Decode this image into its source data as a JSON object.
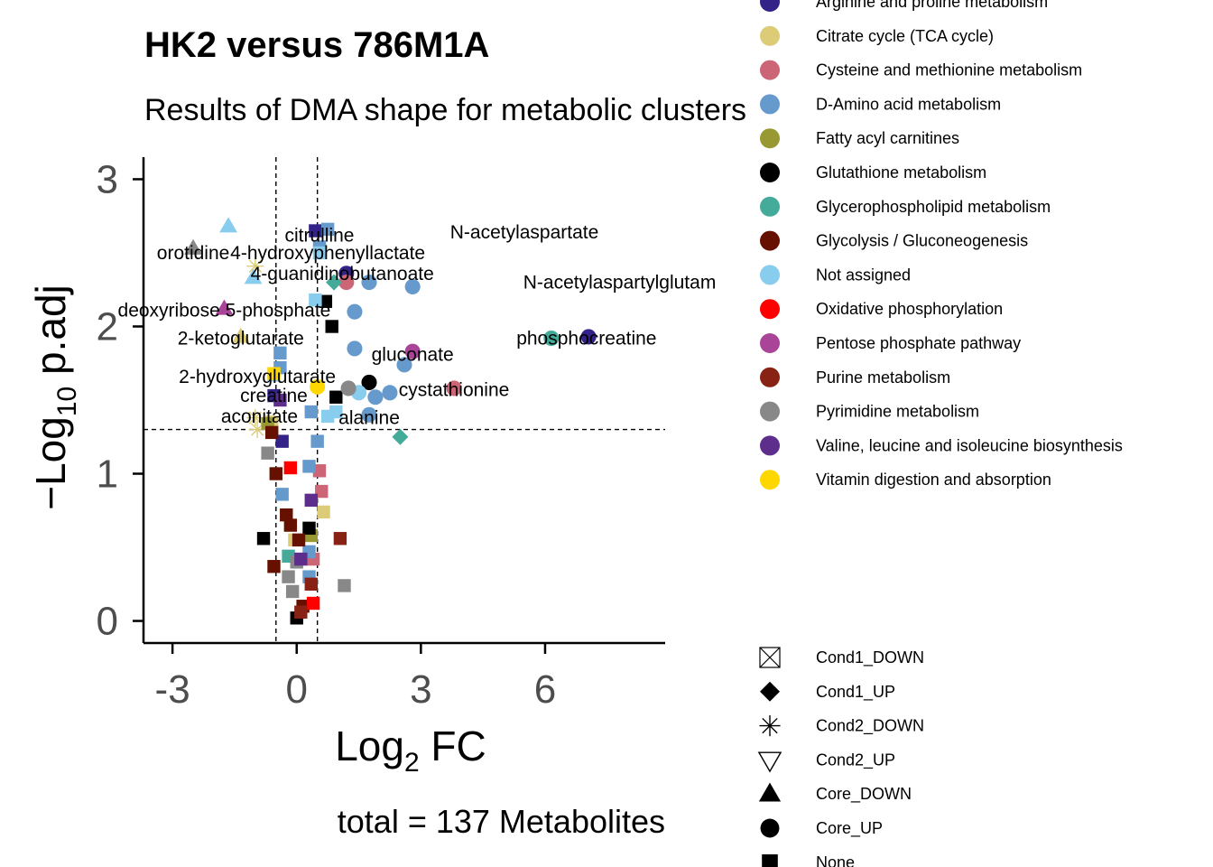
{
  "chart_data": {
    "type": "scatter",
    "title": "HK2 versus 786M1A",
    "subtitle": "Results of DMA shape for metabolic clusters",
    "xlabel": "Log2 FC",
    "ylabel": "-Log10 p.adj",
    "caption": "total = 137 Metabolites",
    "xlim": [
      -3.7,
      8.9
    ],
    "ylim": [
      -0.15,
      3.15
    ],
    "xticks": [
      "-3",
      "0",
      "3",
      "6"
    ],
    "yticks": [
      "0",
      "1",
      "2",
      "3"
    ],
    "thresholds": {
      "x": [
        -0.5,
        0.5
      ],
      "y": 1.3
    },
    "grid": false,
    "legend_position": "right",
    "pathway_legend": [
      {
        "name": "Arginine and proline metabolism",
        "color": "#332288"
      },
      {
        "name": "Citrate cycle (TCA cycle)",
        "color": "#DDCC77"
      },
      {
        "name": "Cysteine and methionine metabolism",
        "color": "#CC6677"
      },
      {
        "name": "D-Amino acid metabolism",
        "color": "#6699CC"
      },
      {
        "name": "Fatty acyl carnitines",
        "color": "#999933"
      },
      {
        "name": "Glutathione metabolism",
        "color": "#000000"
      },
      {
        "name": "Glycerophospholipid metabolism",
        "color": "#44AA99"
      },
      {
        "name": "Glycolysis / Gluconeogenesis",
        "color": "#661100"
      },
      {
        "name": "Not assigned",
        "color": "#88CCEE"
      },
      {
        "name": "Oxidative phosphorylation",
        "color": "#FF0000"
      },
      {
        "name": "Pentose phosphate pathway",
        "color": "#AA4499"
      },
      {
        "name": "Purine metabolism",
        "color": "#882215"
      },
      {
        "name": "Pyrimidine metabolism",
        "color": "#888888"
      },
      {
        "name": "Valine, leucine and isoleucine biosynthesis",
        "color": "#5D2E8C"
      },
      {
        "name": "Vitamin digestion and absorption",
        "color": "#FFD700"
      }
    ],
    "shape_legend": [
      {
        "name": "Cond1_DOWN",
        "shape": "box-cross"
      },
      {
        "name": "Cond1_UP",
        "shape": "diamond"
      },
      {
        "name": "Cond2_DOWN",
        "shape": "asterisk"
      },
      {
        "name": "Cond2_UP",
        "shape": "triangle-down-open"
      },
      {
        "name": "Core_DOWN",
        "shape": "triangle"
      },
      {
        "name": "Core_UP",
        "shape": "circle"
      },
      {
        "name": "None",
        "shape": "square"
      }
    ],
    "labels": [
      {
        "text": "citrulline",
        "x": 0.55,
        "y": 2.62
      },
      {
        "text": "N-acetylaspartate",
        "x": 5.5,
        "y": 2.64
      },
      {
        "text": "orotidine",
        "x": -2.5,
        "y": 2.5
      },
      {
        "text": "4-hydroxyphenyllactate",
        "x": 0.75,
        "y": 2.5
      },
      {
        "text": "4-guanidinobutanoate",
        "x": 1.1,
        "y": 2.36
      },
      {
        "text": "N-acetylaspartylglutam",
        "x": 7.8,
        "y": 2.3
      },
      {
        "text": "deoxyribose 5-phosphate",
        "x": -1.75,
        "y": 2.11
      },
      {
        "text": "phosphocreatine",
        "x": 7.0,
        "y": 1.92
      },
      {
        "text": "2-ketoglutarate",
        "x": -1.35,
        "y": 1.92
      },
      {
        "text": "gluconate",
        "x": 2.8,
        "y": 1.81
      },
      {
        "text": "2-hydroxyglutarate",
        "x": -0.95,
        "y": 1.66
      },
      {
        "text": "cystathionine",
        "x": 3.8,
        "y": 1.57
      },
      {
        "text": "creatine",
        "x": -0.55,
        "y": 1.53
      },
      {
        "text": "aconitate",
        "x": -0.9,
        "y": 1.39
      },
      {
        "text": "alanine",
        "x": 1.75,
        "y": 1.38
      }
    ],
    "series": [
      {
        "name": "Arginine and proline metabolism",
        "points": [
          {
            "x": 0.45,
            "y": 2.65,
            "shape": "square"
          },
          {
            "x": 1.2,
            "y": 2.36,
            "shape": "circle"
          },
          {
            "x": 7.05,
            "y": 1.93,
            "shape": "circle"
          },
          {
            "x": -0.55,
            "y": 1.53,
            "shape": "square"
          },
          {
            "x": -0.35,
            "y": 1.22,
            "shape": "square"
          }
        ]
      },
      {
        "name": "Citrate cycle (TCA cycle)",
        "points": [
          {
            "x": -1.35,
            "y": 1.93,
            "shape": "triangle"
          },
          {
            "x": -1.0,
            "y": 1.38,
            "shape": "asterisk"
          },
          {
            "x": -0.95,
            "y": 1.3,
            "shape": "asterisk"
          },
          {
            "x": -0.6,
            "y": 1.35,
            "shape": "square"
          },
          {
            "x": 0.65,
            "y": 0.74,
            "shape": "square"
          },
          {
            "x": -0.05,
            "y": 0.55,
            "shape": "square"
          },
          {
            "x": -1.0,
            "y": 2.41,
            "shape": "asterisk"
          }
        ]
      },
      {
        "name": "Cysteine and methionine metabolism",
        "points": [
          {
            "x": 1.2,
            "y": 2.3,
            "shape": "circle"
          },
          {
            "x": 3.8,
            "y": 1.58,
            "shape": "circle"
          },
          {
            "x": 0.55,
            "y": 1.02,
            "shape": "square"
          },
          {
            "x": 0.6,
            "y": 0.88,
            "shape": "square"
          },
          {
            "x": 0.4,
            "y": 0.42,
            "shape": "square"
          }
        ]
      },
      {
        "name": "D-Amino acid metabolism",
        "points": [
          {
            "x": 0.75,
            "y": 2.66,
            "shape": "square"
          },
          {
            "x": 1.75,
            "y": 2.3,
            "shape": "circle"
          },
          {
            "x": 2.8,
            "y": 2.27,
            "shape": "circle"
          },
          {
            "x": 1.4,
            "y": 2.1,
            "shape": "circle"
          },
          {
            "x": 1.4,
            "y": 1.85,
            "shape": "circle"
          },
          {
            "x": 2.6,
            "y": 1.74,
            "shape": "circle"
          },
          {
            "x": 1.9,
            "y": 1.52,
            "shape": "circle"
          },
          {
            "x": 2.25,
            "y": 1.55,
            "shape": "circle"
          },
          {
            "x": 1.75,
            "y": 1.4,
            "shape": "circle"
          },
          {
            "x": -0.4,
            "y": 1.72,
            "shape": "square"
          },
          {
            "x": -0.4,
            "y": 1.82,
            "shape": "square"
          },
          {
            "x": 0.35,
            "y": 1.42,
            "shape": "square"
          },
          {
            "x": 0.5,
            "y": 1.22,
            "shape": "square"
          },
          {
            "x": 0.3,
            "y": 1.05,
            "shape": "square"
          },
          {
            "x": -0.35,
            "y": 0.86,
            "shape": "square"
          },
          {
            "x": 0.3,
            "y": 0.47,
            "shape": "square"
          },
          {
            "x": 0.3,
            "y": 0.3,
            "shape": "square"
          },
          {
            "x": 0.55,
            "y": 2.54,
            "shape": "square"
          }
        ]
      },
      {
        "name": "Fatty acyl carnitines",
        "points": [
          {
            "x": -0.7,
            "y": 1.34,
            "shape": "square"
          },
          {
            "x": 0.35,
            "y": 0.58,
            "shape": "square"
          }
        ]
      },
      {
        "name": "Glutathione metabolism",
        "points": [
          {
            "x": 0.7,
            "y": 2.17,
            "shape": "square"
          },
          {
            "x": 0.85,
            "y": 2.0,
            "shape": "square"
          },
          {
            "x": 1.75,
            "y": 1.62,
            "shape": "circle"
          },
          {
            "x": 0.95,
            "y": 1.52,
            "shape": "square"
          },
          {
            "x": -0.8,
            "y": 0.56,
            "shape": "square"
          },
          {
            "x": 0.3,
            "y": 0.63,
            "shape": "square"
          },
          {
            "x": 0.0,
            "y": 0.02,
            "shape": "square"
          }
        ]
      },
      {
        "name": "Glycerophospholipid metabolism",
        "points": [
          {
            "x": 6.15,
            "y": 1.92,
            "shape": "circle"
          },
          {
            "x": 0.9,
            "y": 2.3,
            "shape": "diamond"
          },
          {
            "x": 2.5,
            "y": 1.25,
            "shape": "diamond"
          },
          {
            "x": -0.2,
            "y": 0.44,
            "shape": "square"
          }
        ]
      },
      {
        "name": "Glycolysis / Gluconeogenesis",
        "points": [
          {
            "x": -0.5,
            "y": 1.0,
            "shape": "square"
          },
          {
            "x": -0.25,
            "y": 0.72,
            "shape": "square"
          },
          {
            "x": -0.15,
            "y": 0.65,
            "shape": "square"
          },
          {
            "x": -0.55,
            "y": 0.37,
            "shape": "square"
          },
          {
            "x": 0.05,
            "y": 0.55,
            "shape": "square"
          },
          {
            "x": 0.15,
            "y": 0.1,
            "shape": "square"
          },
          {
            "x": -0.6,
            "y": 1.28,
            "shape": "square"
          }
        ]
      },
      {
        "name": "Not assigned",
        "points": [
          {
            "x": -1.65,
            "y": 2.68,
            "shape": "triangle"
          },
          {
            "x": -1.05,
            "y": 2.33,
            "shape": "triangle"
          },
          {
            "x": 0.45,
            "y": 2.18,
            "shape": "square"
          },
          {
            "x": 0.55,
            "y": 2.5,
            "shape": "square"
          },
          {
            "x": 1.5,
            "y": 1.55,
            "shape": "circle"
          },
          {
            "x": 0.75,
            "y": 1.39,
            "shape": "square"
          },
          {
            "x": 0.95,
            "y": 1.42,
            "shape": "square"
          },
          {
            "x": -0.55,
            "y": 1.67,
            "shape": "square"
          }
        ]
      },
      {
        "name": "Oxidative phosphorylation",
        "points": [
          {
            "x": -0.15,
            "y": 1.04,
            "shape": "square"
          },
          {
            "x": 0.4,
            "y": 0.12,
            "shape": "square"
          }
        ]
      },
      {
        "name": "Pentose phosphate pathway",
        "points": [
          {
            "x": -1.75,
            "y": 2.12,
            "shape": "triangle"
          },
          {
            "x": 2.8,
            "y": 1.83,
            "shape": "circle"
          }
        ]
      },
      {
        "name": "Purine metabolism",
        "points": [
          {
            "x": 1.05,
            "y": 0.56,
            "shape": "square"
          },
          {
            "x": 0.35,
            "y": 0.25,
            "shape": "square"
          },
          {
            "x": 0.1,
            "y": 0.06,
            "shape": "square"
          }
        ]
      },
      {
        "name": "Pyrimidine metabolism",
        "points": [
          {
            "x": -2.5,
            "y": 2.53,
            "shape": "triangle"
          },
          {
            "x": 1.25,
            "y": 1.58,
            "shape": "circle"
          },
          {
            "x": -0.7,
            "y": 1.14,
            "shape": "square"
          },
          {
            "x": 1.15,
            "y": 0.24,
            "shape": "square"
          },
          {
            "x": -0.2,
            "y": 0.3,
            "shape": "square"
          },
          {
            "x": -0.1,
            "y": 0.2,
            "shape": "square"
          },
          {
            "x": 0.0,
            "y": 0.4,
            "shape": "square"
          }
        ]
      },
      {
        "name": "Valine, leucine and isoleucine biosynthesis",
        "points": [
          {
            "x": -0.4,
            "y": 1.5,
            "shape": "square"
          },
          {
            "x": 0.35,
            "y": 0.82,
            "shape": "square"
          },
          {
            "x": 0.1,
            "y": 0.42,
            "shape": "square"
          }
        ]
      },
      {
        "name": "Vitamin digestion and absorption",
        "points": [
          {
            "x": 0.5,
            "y": 1.59,
            "shape": "circle"
          },
          {
            "x": -0.55,
            "y": 1.68,
            "shape": "square"
          }
        ]
      }
    ]
  }
}
